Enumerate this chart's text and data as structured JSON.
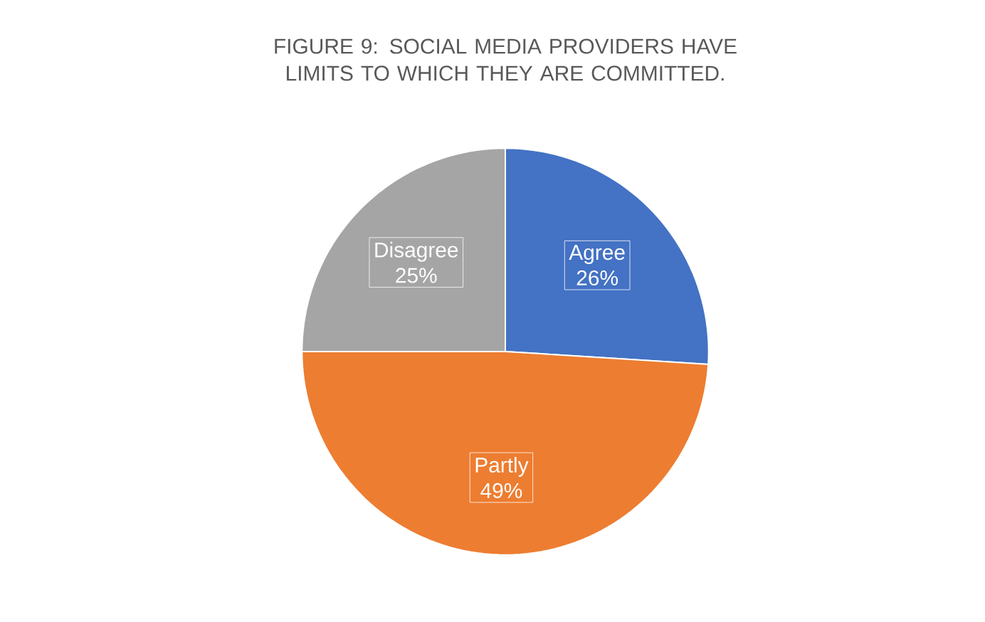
{
  "chart_data": {
    "type": "pie",
    "title": "FIGURE 9: SOCIAL MEDIA PROVIDERS HAVE LIMITS TO WHICH THEY ARE COMMITTED.",
    "categories": [
      "Agree",
      "Partly",
      "Disagree"
    ],
    "values": [
      26,
      49,
      25
    ],
    "colors": [
      "#4472c4",
      "#ed7d31",
      "#a5a5a5"
    ],
    "value_labels": [
      "26%",
      "49%",
      "25%"
    ]
  }
}
